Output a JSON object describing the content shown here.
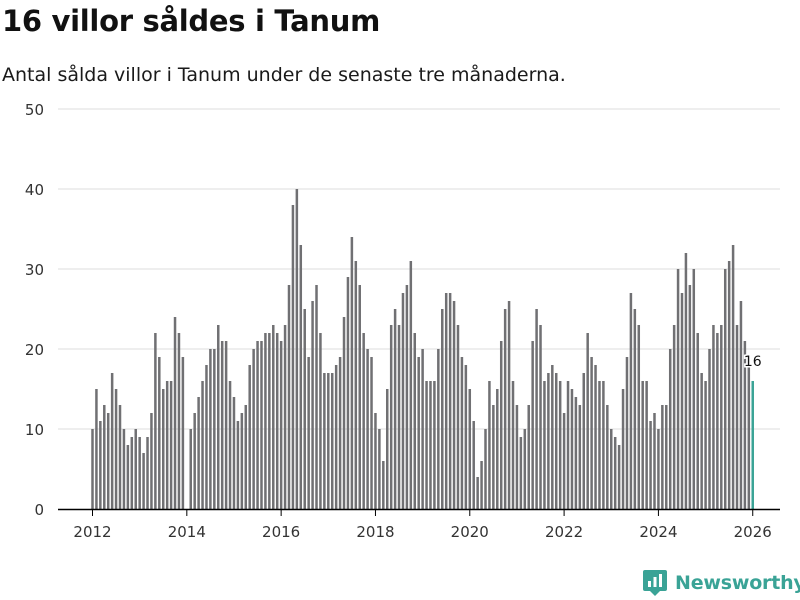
{
  "title": "16 villor såldes i Tanum",
  "subtitle": "Antal sålda villor i Tanum under de senaste tre månaderna.",
  "brand": {
    "name": "Newsworthy",
    "color": "#3aa396"
  },
  "colors": {
    "bar": "#707073",
    "highlight": "#3aa396",
    "grid": "#dcdcdc",
    "axis": "#000000",
    "text": "#333333"
  },
  "chart_data": {
    "type": "bar",
    "title": "16 villor såldes i Tanum",
    "xlabel": "",
    "ylabel": "",
    "ylim": [
      0,
      50
    ],
    "yticks": [
      0,
      10,
      20,
      30,
      40,
      50
    ],
    "xticks": [
      "2012",
      "2014",
      "2016",
      "2018",
      "2020",
      "2022",
      "2024",
      "2026"
    ],
    "grid": true,
    "start": "2012-01",
    "frequency": "monthly",
    "values": [
      10,
      15,
      11,
      13,
      12,
      17,
      15,
      13,
      10,
      8,
      9,
      10,
      9,
      7,
      9,
      12,
      22,
      19,
      15,
      16,
      16,
      24,
      22,
      19,
      0,
      10,
      12,
      14,
      16,
      18,
      20,
      20,
      23,
      21,
      21,
      16,
      14,
      11,
      12,
      13,
      18,
      20,
      21,
      21,
      22,
      22,
      23,
      22,
      21,
      23,
      28,
      38,
      40,
      33,
      25,
      19,
      26,
      28,
      22,
      17,
      17,
      17,
      18,
      19,
      24,
      29,
      34,
      31,
      28,
      22,
      20,
      19,
      12,
      10,
      6,
      15,
      23,
      25,
      23,
      27,
      28,
      31,
      22,
      19,
      20,
      16,
      16,
      16,
      20,
      25,
      27,
      27,
      26,
      23,
      19,
      18,
      15,
      11,
      4,
      6,
      10,
      16,
      13,
      15,
      21,
      25,
      26,
      16,
      13,
      9,
      10,
      13,
      21,
      25,
      23,
      16,
      17,
      18,
      17,
      16,
      12,
      16,
      15,
      14,
      13,
      17,
      22,
      19,
      18,
      16,
      16,
      13,
      10,
      9,
      8,
      15,
      19,
      27,
      25,
      23,
      16,
      16,
      11,
      12,
      10,
      13,
      13,
      20,
      23,
      30,
      27,
      32,
      28,
      30,
      22,
      17,
      16,
      20,
      23,
      22,
      23,
      30,
      31,
      33,
      23,
      26,
      21,
      18,
      16
    ],
    "highlight": {
      "label": "16",
      "value": 16,
      "index": 168
    }
  }
}
